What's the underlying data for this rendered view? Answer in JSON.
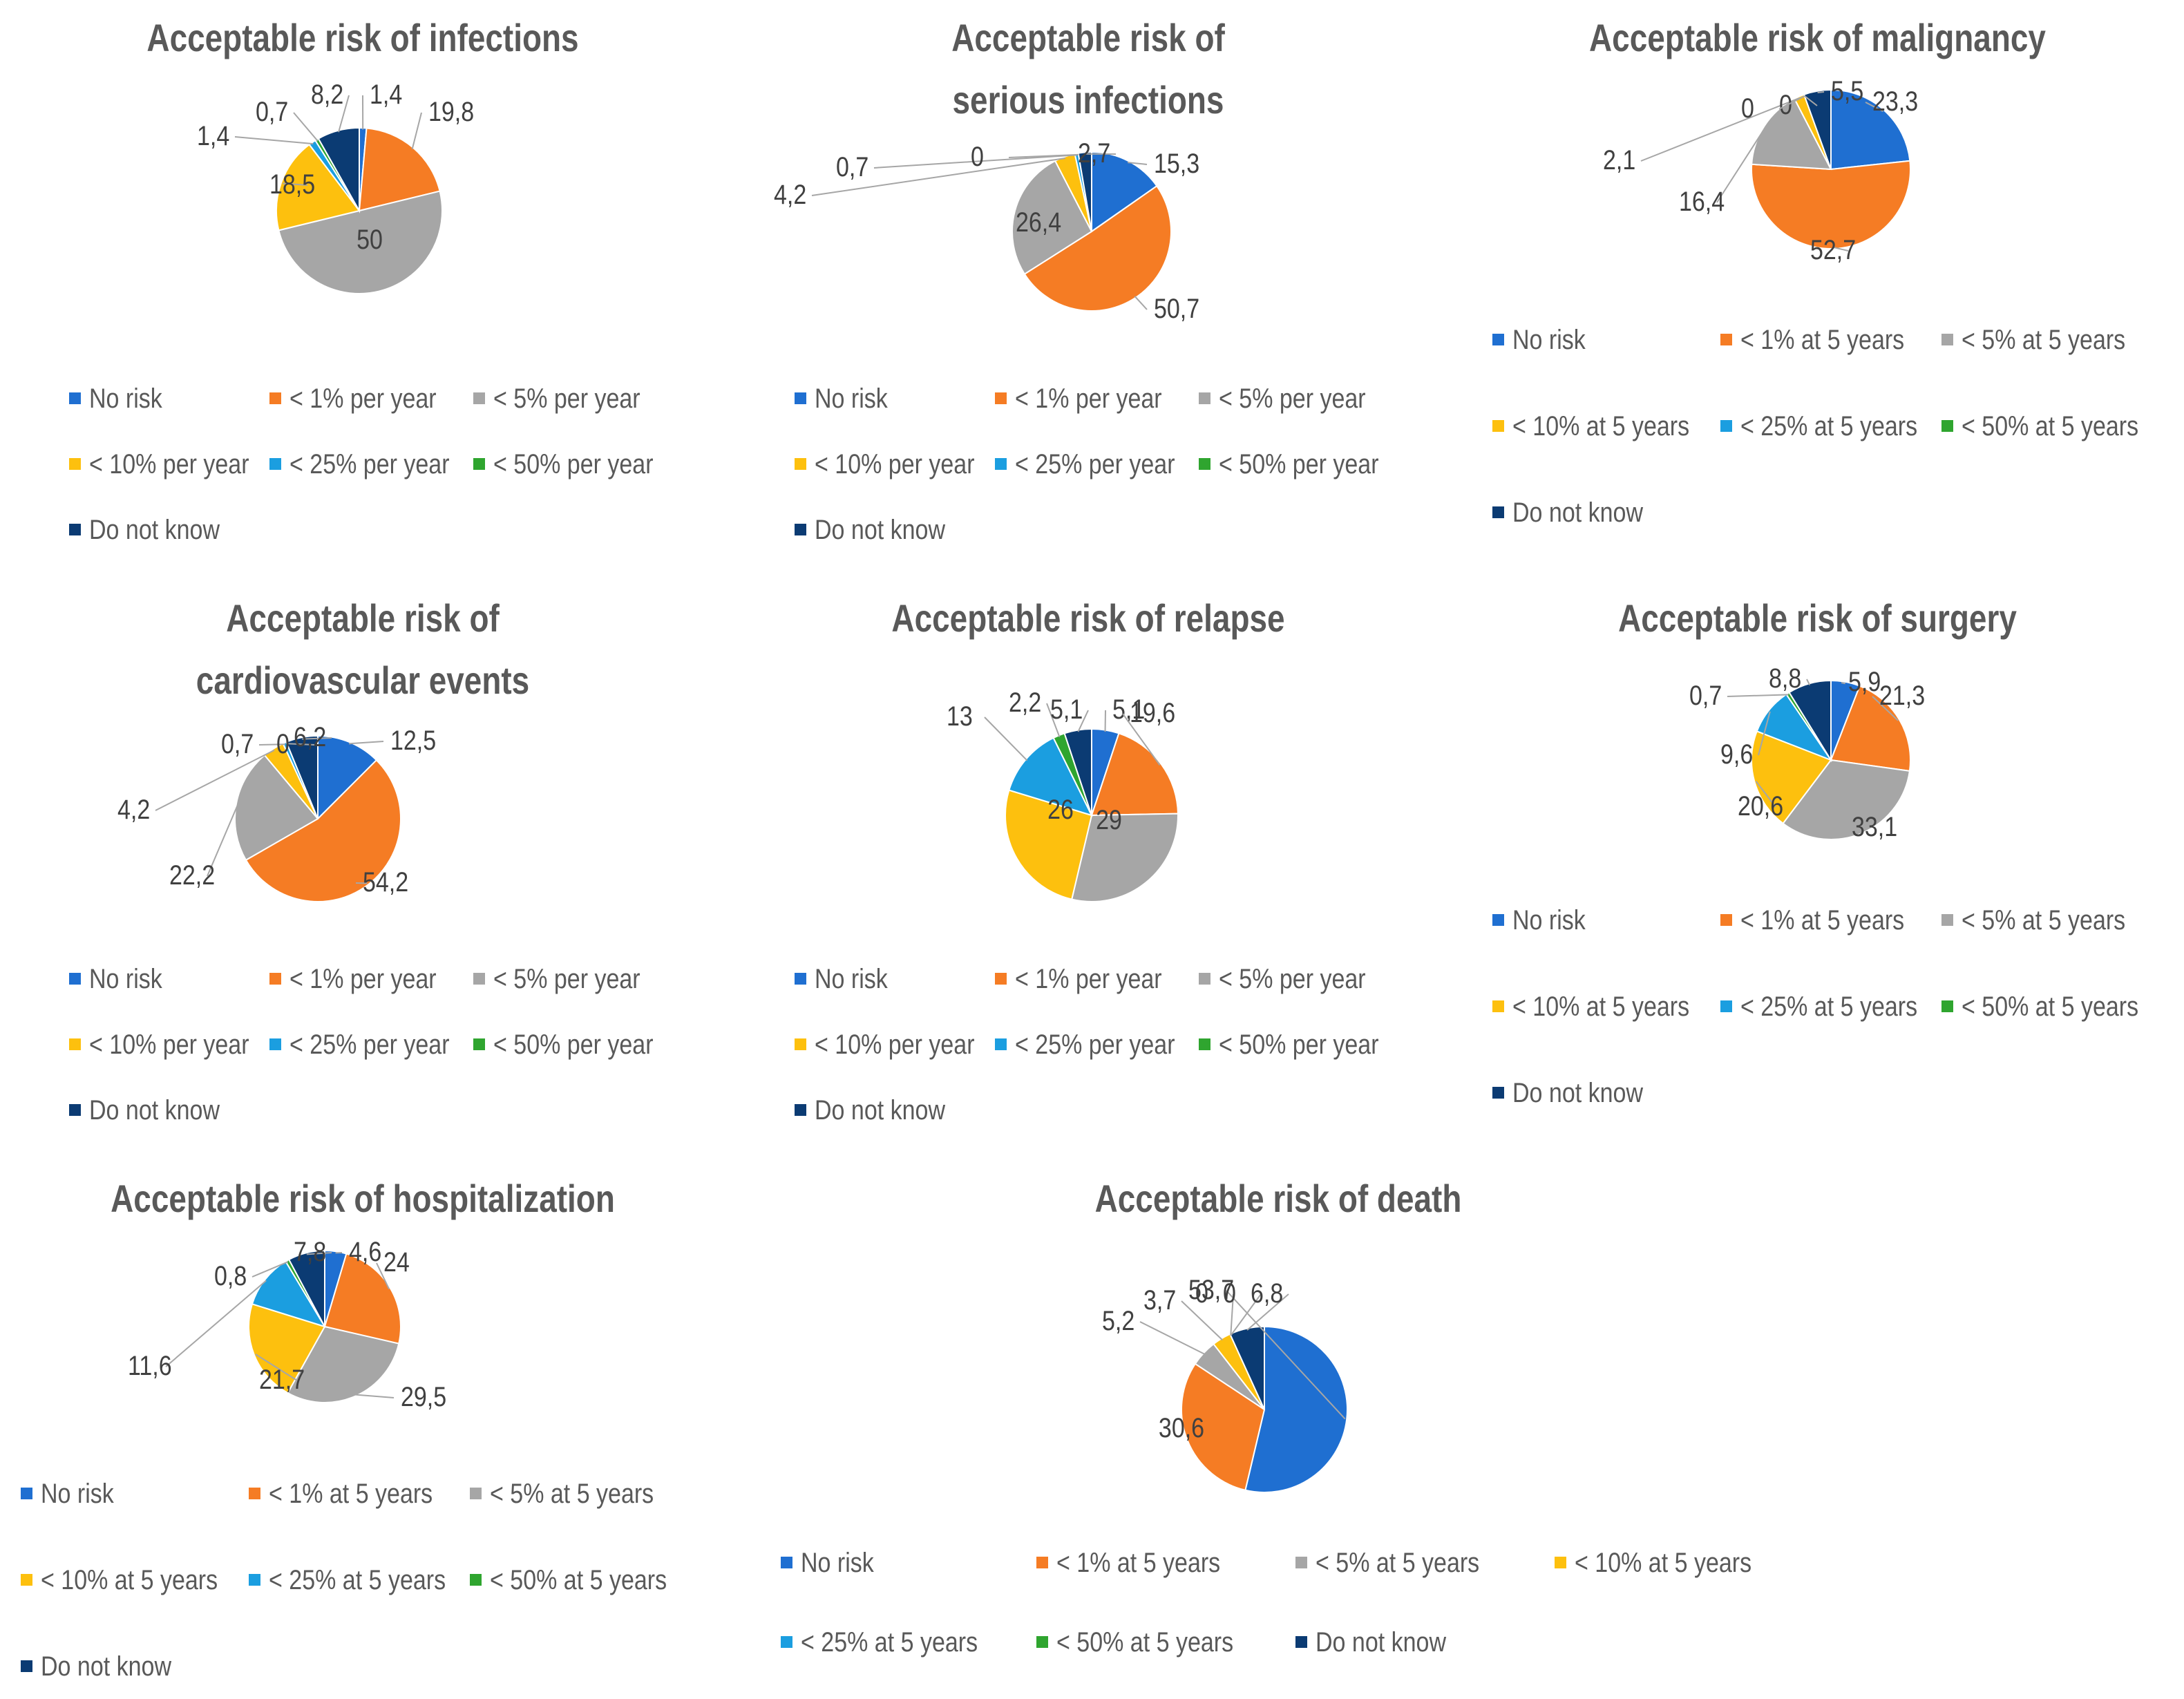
{
  "colors": {
    "No risk": "#1f6fd1",
    "<1": "#f57c24",
    "<5": "#a6a6a6",
    "<10": "#fdc00e",
    "<25": "#1b9ee0",
    "<50": "#2fa52f",
    "Do not know": "#0b3b73"
  },
  "chart_data": [
    {
      "type": "pie",
      "title": "Acceptable risk of infections",
      "categories": [
        "No risk",
        "< 1% per year",
        "< 5% per year",
        "< 10% per year",
        "< 25% per year",
        "< 50% per year",
        "Do not know"
      ],
      "values": [
        1.4,
        19.8,
        50,
        18.5,
        1.4,
        0.7,
        8.2
      ],
      "labels": [
        "1,4",
        "19,8",
        "50",
        "18,5",
        "1,4",
        "0,7",
        "8,2"
      ]
    },
    {
      "type": "pie",
      "title": "Acceptable risk of serious infections",
      "categories": [
        "No risk",
        "< 1% per year",
        "< 5% per year",
        "< 10% per year",
        "< 25% per year",
        "< 50% per year",
        "Do not know"
      ],
      "values": [
        15.3,
        50.7,
        26.4,
        4.2,
        0.7,
        0,
        2.7
      ],
      "labels": [
        "15,3",
        "50,7",
        "26,4",
        "4,2",
        "0,7",
        "0",
        "2,7"
      ]
    },
    {
      "type": "pie",
      "title": "Acceptable risk of malignancy",
      "categories": [
        "No risk",
        "< 1% at 5 years",
        "< 5% at 5 years",
        "< 10% at 5 years",
        "< 25% at 5 years",
        "< 50% at 5 years",
        "Do not know"
      ],
      "values": [
        23.3,
        52.7,
        16.4,
        2.1,
        0,
        0,
        5.5
      ],
      "labels": [
        "23,3",
        "52,7",
        "16,4",
        "2,1",
        "0",
        "0",
        "5,5"
      ]
    },
    {
      "type": "pie",
      "title": "Acceptable risk of cardiovascular events",
      "categories": [
        "No risk",
        "< 1% per year",
        "< 5% per year",
        "< 10% per year",
        "< 25% per year",
        "< 50% per year",
        "Do not know"
      ],
      "values": [
        12.5,
        54.2,
        22.2,
        4.2,
        0.7,
        0,
        6.2
      ],
      "labels": [
        "12,5",
        "54,2",
        "22,2",
        "4,2",
        "0,7",
        "0",
        "6,2"
      ]
    },
    {
      "type": "pie",
      "title": "Acceptable risk of relapse",
      "categories": [
        "No risk",
        "< 1% per year",
        "< 5% per year",
        "< 10% per year",
        "< 25% per year",
        "< 50% per year",
        "Do not know"
      ],
      "values": [
        5.1,
        19.6,
        29,
        26,
        13,
        2.2,
        5.1
      ],
      "labels": [
        "5,1",
        "19,6",
        "29",
        "26",
        "13",
        "2,2",
        "5,1"
      ]
    },
    {
      "type": "pie",
      "title": "Acceptable risk of surgery",
      "categories": [
        "No risk",
        "< 1% at 5 years",
        "< 5% at 5 years",
        "< 10% at 5 years",
        "< 25% at 5 years",
        "< 50% at 5 years",
        "Do not know"
      ],
      "values": [
        5.9,
        21.3,
        33.1,
        20.6,
        9.6,
        0.7,
        8.8
      ],
      "labels": [
        "5,9",
        "21,3",
        "33,1",
        "20,6",
        "9,6",
        "0,7",
        "8,8"
      ]
    },
    {
      "type": "pie",
      "title": "Acceptable risk of hospitalization",
      "categories": [
        "No risk",
        "< 1% at 5 years",
        "< 5% at 5 years",
        "< 10% at 5 years",
        "< 25% at 5 years",
        "< 50% at 5 years",
        "Do not know"
      ],
      "values": [
        4.6,
        24,
        29.5,
        21.7,
        11.6,
        0.8,
        7.8
      ],
      "labels": [
        "4,6",
        "24",
        "29,5",
        "21,7",
        "11,6",
        "0,8",
        "7,8"
      ]
    },
    {
      "type": "pie",
      "title": "Acceptable risk of death",
      "categories": [
        "No risk",
        "< 1% at 5 years",
        "< 5% at 5 years",
        "< 10% at 5 years",
        "< 25% at 5 years",
        "< 50% at 5 years",
        "Do not know"
      ],
      "values": [
        53.7,
        30.6,
        5.2,
        3.7,
        0,
        0,
        6.8
      ],
      "labels": [
        "53,7",
        "30,6",
        "5,2",
        "3,7",
        "0",
        "0",
        "6,8"
      ]
    }
  ]
}
